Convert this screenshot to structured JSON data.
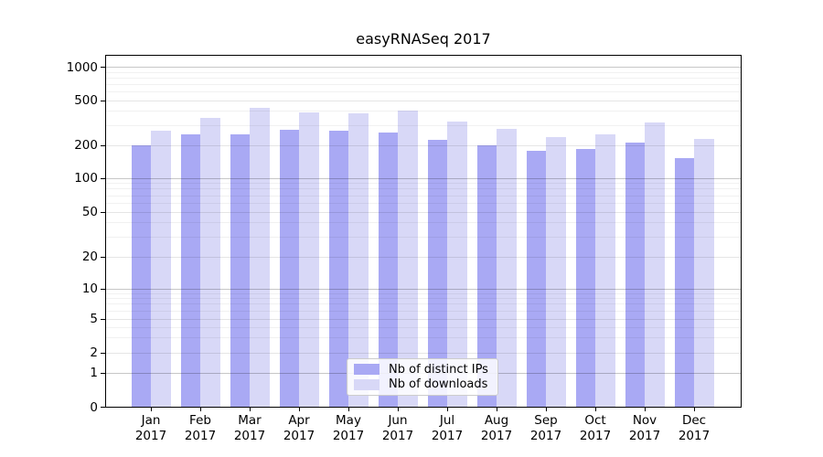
{
  "chart_data": {
    "type": "bar",
    "title": "easyRNASeq 2017",
    "year": "2017",
    "months": [
      "Jan",
      "Feb",
      "Mar",
      "Apr",
      "May",
      "Jun",
      "Jul",
      "Aug",
      "Sep",
      "Oct",
      "Nov",
      "Dec"
    ],
    "categories": [
      "Jan 2017",
      "Feb 2017",
      "Mar 2017",
      "Apr 2017",
      "May 2017",
      "Jun 2017",
      "Jul 2017",
      "Aug 2017",
      "Sep 2017",
      "Oct 2017",
      "Nov 2017",
      "Dec 2017"
    ],
    "series": [
      {
        "name": "Nb of distinct IPs",
        "color": "#a9a9f4",
        "values": [
          200,
          249,
          250,
          273,
          272,
          261,
          224,
          200,
          179,
          186,
          212,
          153
        ]
      },
      {
        "name": "Nb of downloads",
        "color": "#d8d8f7",
        "values": [
          272,
          350,
          434,
          394,
          388,
          408,
          328,
          281,
          235,
          249,
          322,
          227
        ]
      }
    ],
    "xlabel": "",
    "ylabel": "",
    "yscale": "symlog",
    "yticks": [
      0,
      1,
      2,
      5,
      10,
      20,
      50,
      100,
      200,
      500,
      1000
    ],
    "ylim": [
      0,
      1270
    ],
    "grid": "horizontal",
    "legend_position": "lower center"
  }
}
